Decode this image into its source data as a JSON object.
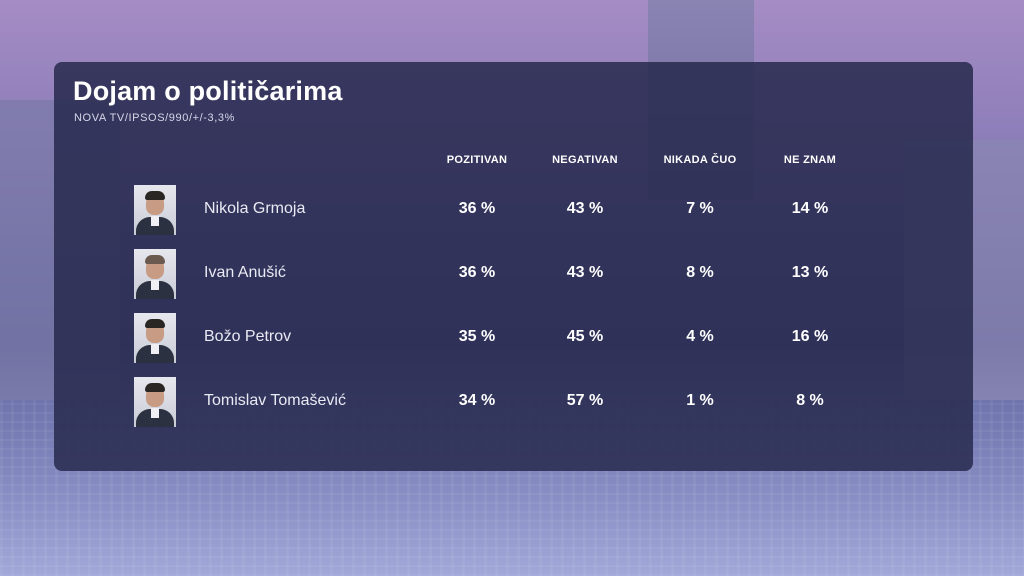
{
  "title": "Dojam o političarima",
  "source": "NOVA TV/IPSOS/990/+/-3,3%",
  "columns": [
    "POZITIVAN",
    "NEGATIVAN",
    "NIKADA ČUO",
    "NE ZNAM"
  ],
  "rows": [
    {
      "name": "Nikola Grmoja",
      "values": [
        "36 %",
        "43 %",
        "7 %",
        "14 %"
      ]
    },
    {
      "name": "Ivan Anušić",
      "values": [
        "36 %",
        "43 %",
        "8 %",
        "13 %"
      ]
    },
    {
      "name": "Božo Petrov",
      "values": [
        "35 %",
        "45 %",
        "4 %",
        "16 %"
      ]
    },
    {
      "name": "Tomislav Tomašević",
      "values": [
        "34 %",
        "57 %",
        "1 %",
        "8 %"
      ]
    }
  ],
  "colors": {
    "panel": "#282a4e",
    "text": "#ffffff"
  }
}
